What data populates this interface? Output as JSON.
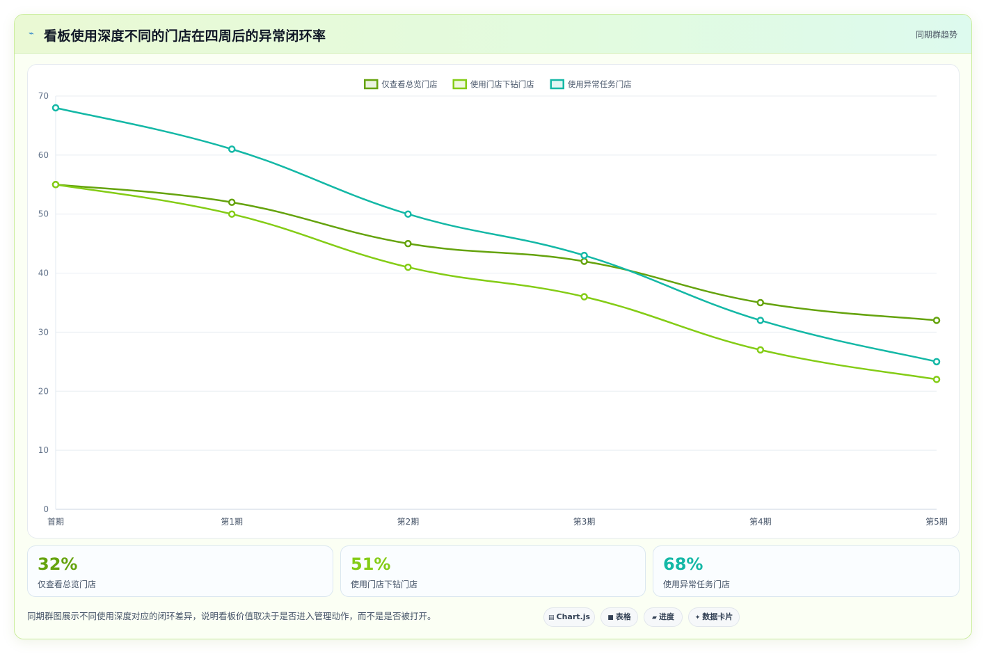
{
  "header": {
    "icon": "trend-line-icon",
    "title": "看板使用深度不同的门店在四周后的异常闭环率",
    "tag": "同期群趋势"
  },
  "chart_data": {
    "type": "line",
    "categories": [
      "首期",
      "第1期",
      "第2期",
      "第3期",
      "第4期",
      "第5期"
    ],
    "series": [
      {
        "name": "仅查看总览门店",
        "color": "#65a30d",
        "values": [
          55,
          52,
          45,
          42,
          35,
          32
        ]
      },
      {
        "name": "使用门店下钻门店",
        "color": "#84cc16",
        "values": [
          55,
          50,
          41,
          36,
          27,
          22
        ]
      },
      {
        "name": "使用异常任务门店",
        "color": "#14b8a6",
        "values": [
          68,
          61,
          50,
          43,
          32,
          25
        ]
      }
    ],
    "ylim": [
      0,
      70
    ],
    "yticks": [
      0,
      10,
      20,
      30,
      40,
      50,
      60,
      70
    ],
    "legend": "top-center",
    "grid": true,
    "smooth": true
  },
  "stats": [
    {
      "value": "32%",
      "label": "仅查看总览门店",
      "color": "#65a30d"
    },
    {
      "value": "51%",
      "label": "使用门店下钻门店",
      "color": "#84cc16"
    },
    {
      "value": "68%",
      "label": "使用异常任务门店",
      "color": "#14b8a6"
    }
  ],
  "footnote": "同期群图展示不同使用深度对应的闭环差异，说明看板价值取决于是否进入管理动作，而不是是否被打开。",
  "badges": [
    {
      "icon": "chart-icon",
      "glyph": "▤",
      "label": "Chart.js"
    },
    {
      "icon": "table-icon",
      "glyph": "■",
      "label": "表格"
    },
    {
      "icon": "progress-icon",
      "glyph": "▰",
      "label": "进度"
    },
    {
      "icon": "sparkle-icon",
      "glyph": "✦",
      "label": "数据卡片"
    }
  ]
}
